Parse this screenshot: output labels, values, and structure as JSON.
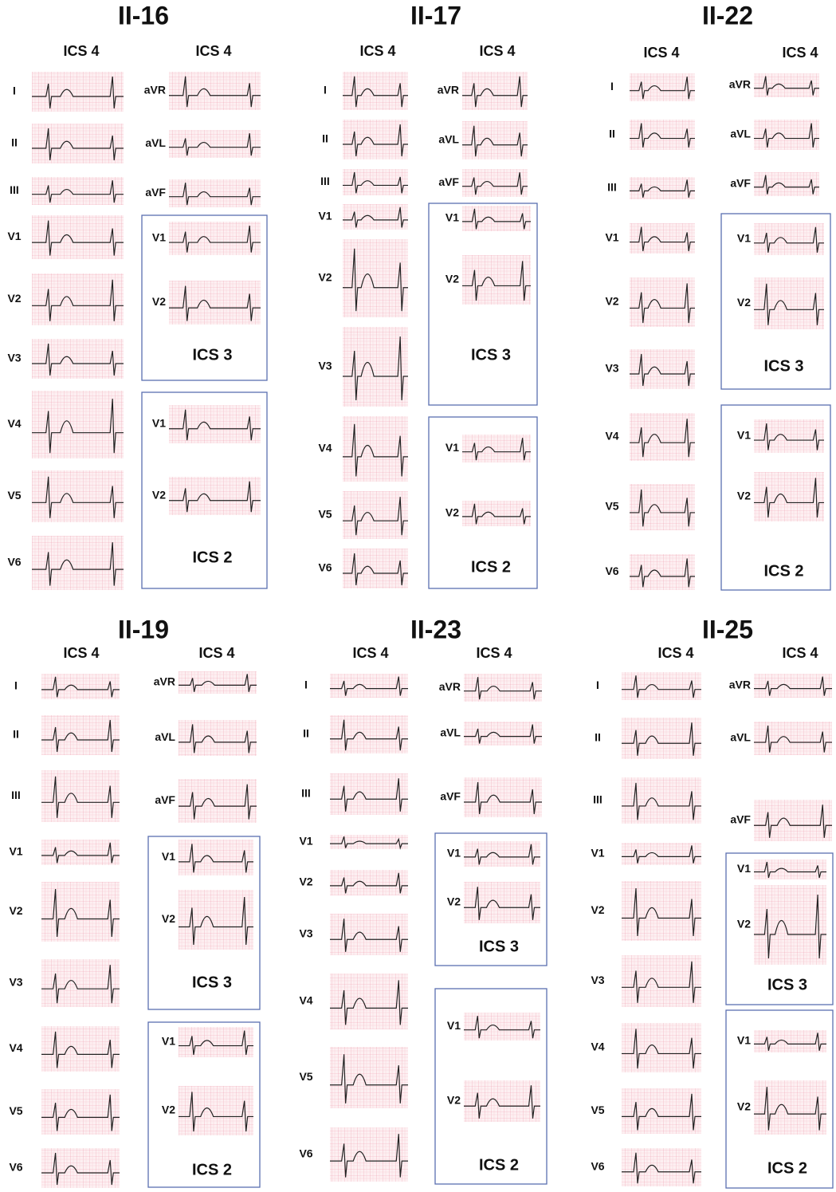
{
  "panels": [
    {
      "title": "II-16",
      "headers": [
        "ICS 4",
        "ICS 4"
      ],
      "left_leads": [
        "I",
        "II",
        "III",
        "V1",
        "V2",
        "V3",
        "V4",
        "V5",
        "V6"
      ],
      "right_leads": [
        "aVR",
        "aVL",
        "aVF"
      ],
      "boxes": [
        {
          "label": "ICS 3",
          "leads": [
            "V1",
            "V2"
          ]
        },
        {
          "label": "ICS 2",
          "leads": [
            "V1",
            "V2"
          ]
        }
      ]
    },
    {
      "title": "II-17",
      "headers": [
        "ICS 4",
        "ICS 4"
      ],
      "left_leads": [
        "I",
        "II",
        "III",
        "V1",
        "V2",
        "V3",
        "V4",
        "V5",
        "V6"
      ],
      "right_leads": [
        "aVR",
        "aVL",
        "aVF"
      ],
      "boxes": [
        {
          "label": "ICS 3",
          "leads": [
            "V1",
            "V2"
          ]
        },
        {
          "label": "ICS 2",
          "leads": [
            "V1",
            "V2"
          ]
        }
      ]
    },
    {
      "title": "II-22",
      "headers": [
        "ICS 4",
        "ICS 4"
      ],
      "left_leads": [
        "I",
        "II",
        "III",
        "V1",
        "V2",
        "V3",
        "V4",
        "V5",
        "V6"
      ],
      "right_leads": [
        "aVR",
        "aVL",
        "aVF"
      ],
      "boxes": [
        {
          "label": "ICS 3",
          "leads": [
            "V1",
            "V2"
          ]
        },
        {
          "label": "ICS 2",
          "leads": [
            "V1",
            "V2"
          ]
        }
      ]
    },
    {
      "title": "II-19",
      "headers": [
        "ICS 4",
        "ICS 4"
      ],
      "left_leads": [
        "I",
        "II",
        "III",
        "V1",
        "V2",
        "V3",
        "V4",
        "V5",
        "V6"
      ],
      "right_leads": [
        "aVR",
        "aVL",
        "aVF"
      ],
      "boxes": [
        {
          "label": "ICS 3",
          "leads": [
            "V1",
            "V2"
          ]
        },
        {
          "label": "ICS 2",
          "leads": [
            "V1",
            "V2"
          ]
        }
      ]
    },
    {
      "title": "II-23",
      "headers": [
        "ICS 4",
        "ICS 4"
      ],
      "left_leads": [
        "I",
        "II",
        "III",
        "V1",
        "V2",
        "V3",
        "V4",
        "V5",
        "V6"
      ],
      "right_leads": [
        "aVR",
        "aVL",
        "aVF"
      ],
      "boxes": [
        {
          "label": "ICS 3",
          "leads": [
            "V1",
            "V2"
          ]
        },
        {
          "label": "ICS 2",
          "leads": [
            "V1",
            "V2"
          ]
        }
      ]
    },
    {
      "title": "II-25",
      "headers": [
        "ICS 4",
        "ICS 4"
      ],
      "left_leads": [
        "I",
        "II",
        "III",
        "V1",
        "V2",
        "V3",
        "V4",
        "V5",
        "V6"
      ],
      "right_leads": [
        "aVR",
        "aVL",
        "aVF"
      ],
      "boxes": [
        {
          "label": "ICS 3",
          "leads": [
            "V1",
            "V2"
          ]
        },
        {
          "label": "ICS 2",
          "leads": [
            "V1",
            "V2"
          ]
        }
      ]
    }
  ]
}
